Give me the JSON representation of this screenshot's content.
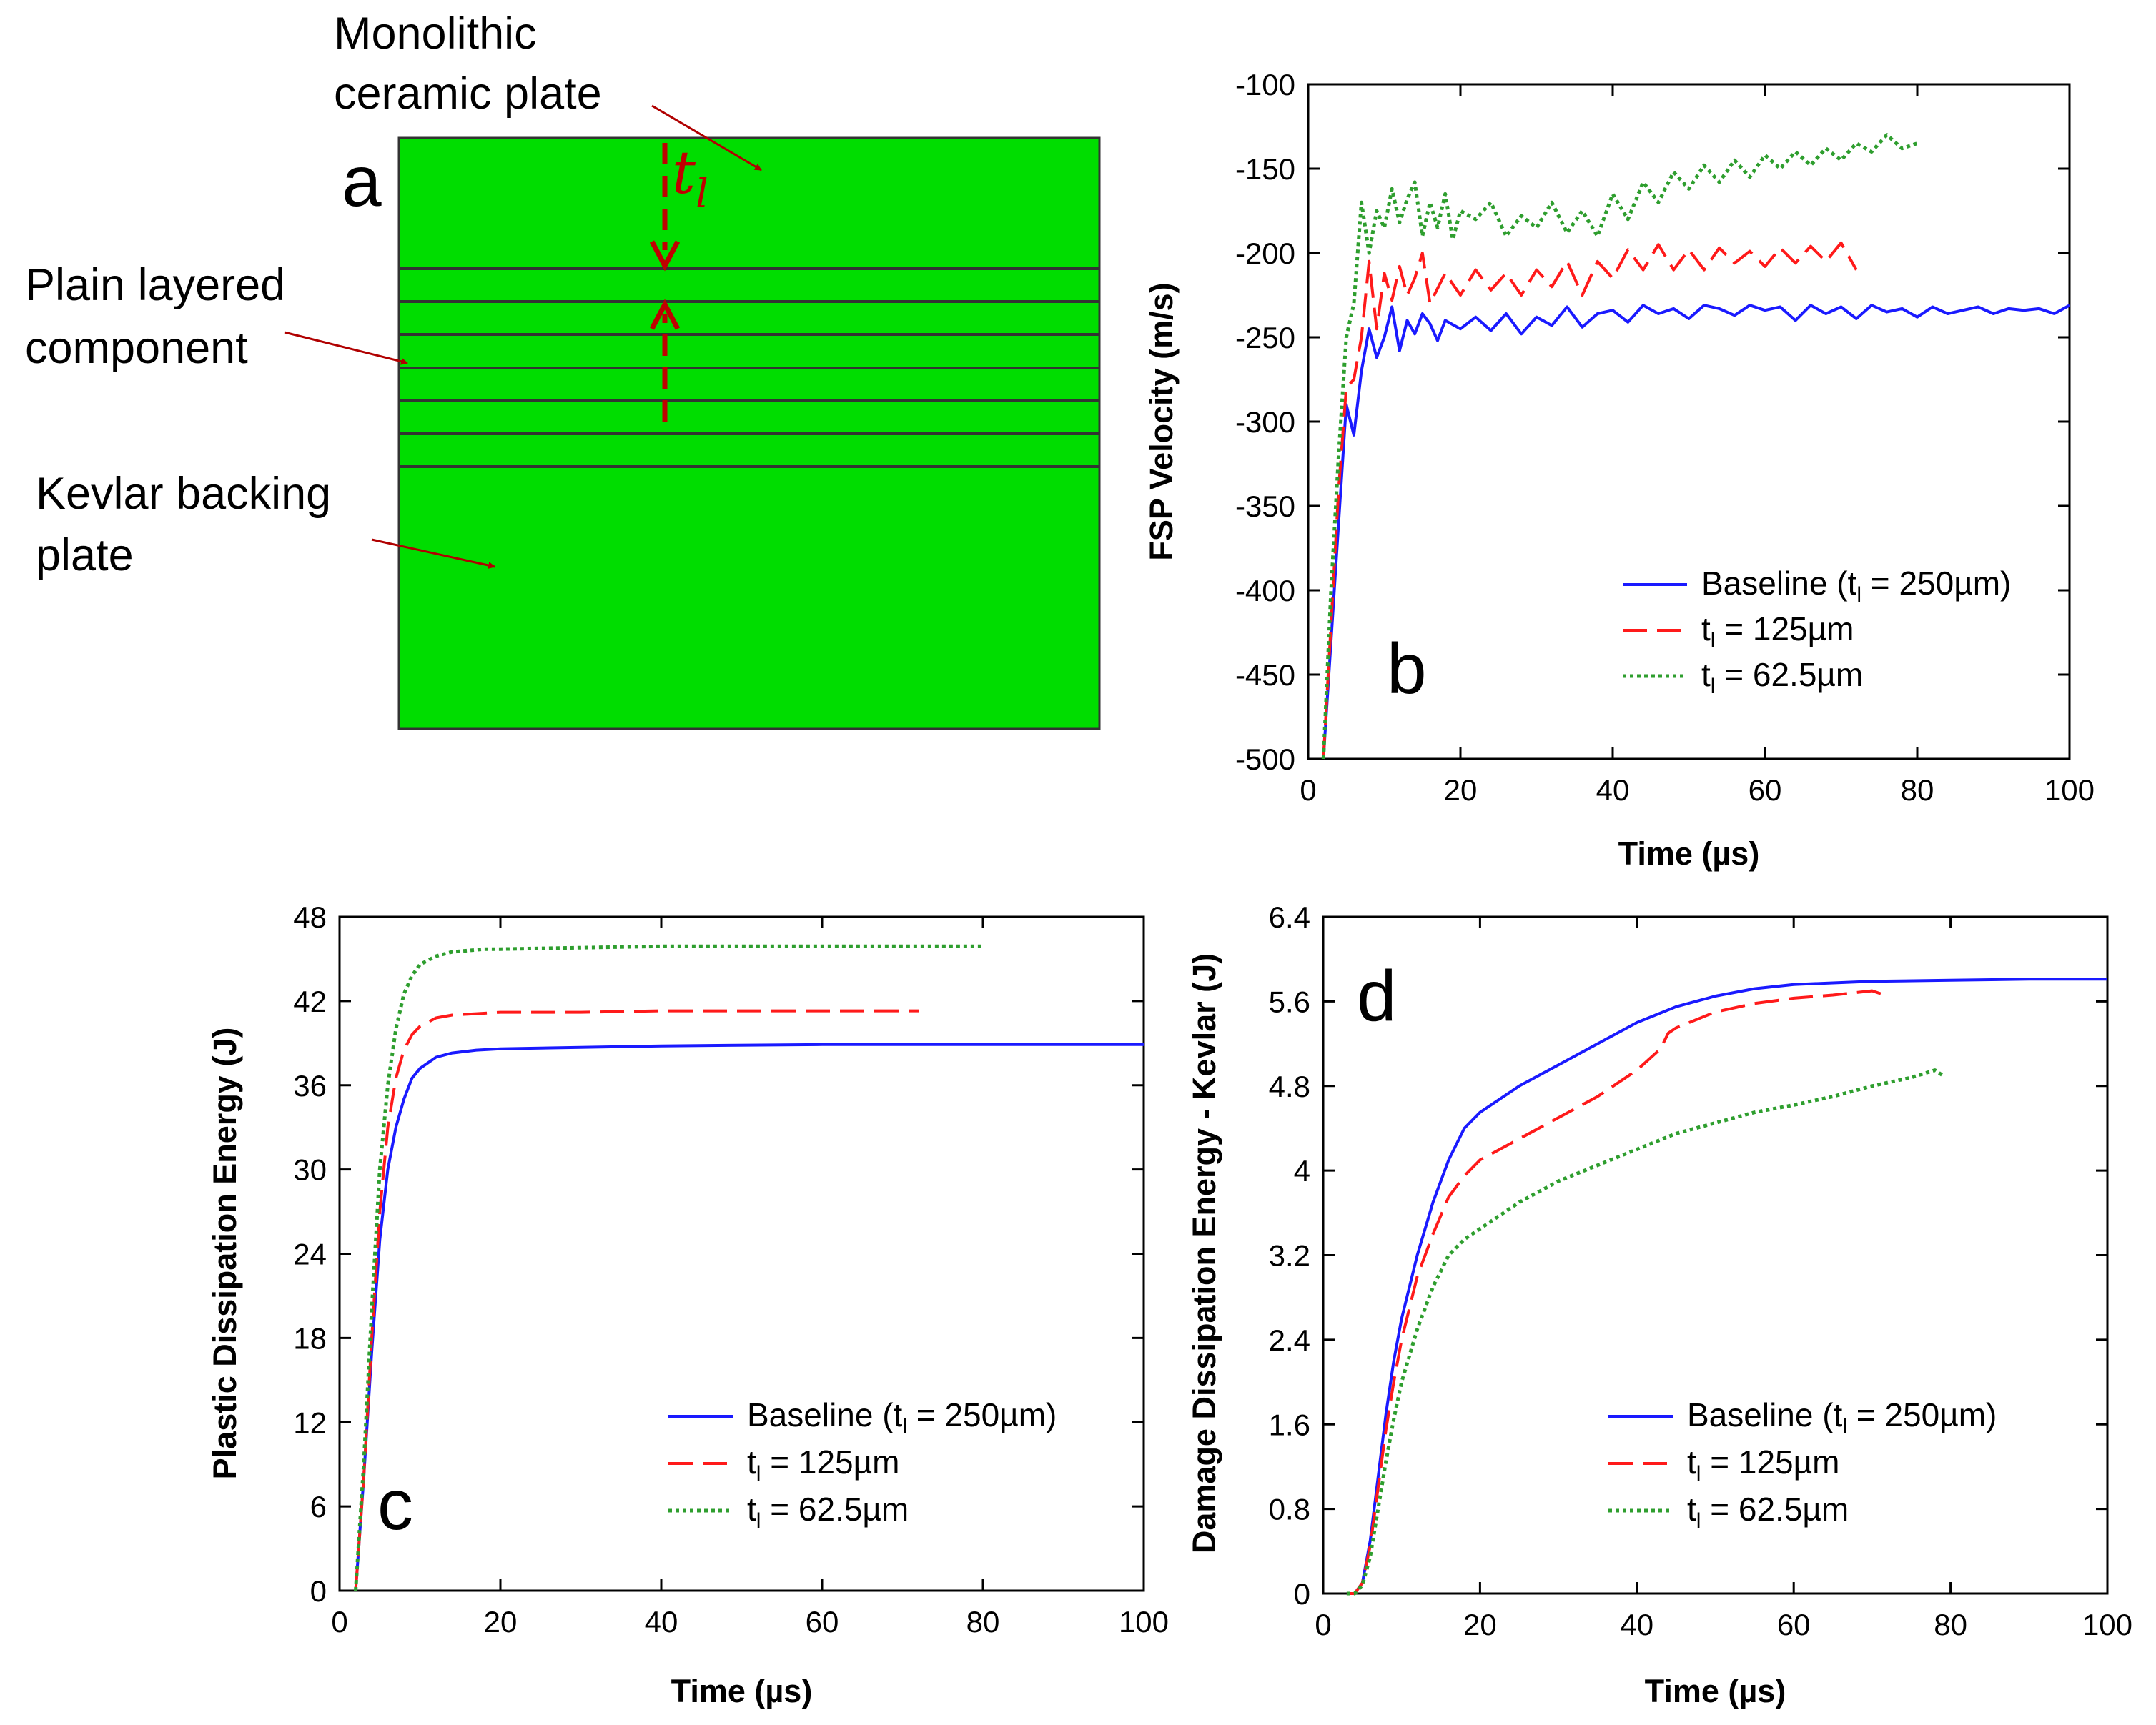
{
  "diagram": {
    "panel_letter": "a",
    "fill_color": "#00dd00",
    "line_color": "#333333",
    "arrow_color": "#c00000",
    "labels": [
      {
        "lines": [
          "Monolithic",
          "ceramic plate"
        ]
      },
      {
        "lines": [
          "Plain layered",
          "component"
        ]
      },
      {
        "lines": [
          "Kevlar backing",
          "plate"
        ]
      }
    ],
    "thickness_symbol": "t",
    "thickness_sub": "l"
  },
  "chart_data": [
    {
      "panel": "b",
      "type": "line",
      "xlabel": "Time (µs)",
      "ylabel": "FSP Velocity (m/s)",
      "xlim": [
        0,
        100
      ],
      "ylim": [
        -500,
        -100
      ],
      "xticks": [
        0,
        20,
        40,
        60,
        80,
        100
      ],
      "yticks": [
        -500,
        -450,
        -400,
        -350,
        -300,
        -250,
        -200,
        -150,
        -100
      ],
      "tick_labels_x": [
        "0",
        "20",
        "40",
        "60",
        "80",
        "100"
      ],
      "tick_labels_y": [
        "-500",
        "-450",
        "-400",
        "-350",
        "-300",
        "-250",
        "-200",
        "-150",
        "-100"
      ],
      "legend_position": "lower-right",
      "series": [
        {
          "name": "Baseline (tl = 250µm)",
          "legend": {
            "pre": "Baseline (t",
            "sub": "l",
            "post": " = 250µm)"
          },
          "color": "#1a1aff",
          "dash": "solid",
          "x": [
            2,
            3,
            4,
            5,
            6,
            7,
            8,
            9,
            10,
            11,
            12,
            13,
            14,
            15,
            16,
            17,
            18,
            20,
            22,
            24,
            26,
            28,
            30,
            32,
            34,
            36,
            38,
            40,
            42,
            44,
            46,
            48,
            50,
            52,
            54,
            56,
            58,
            60,
            62,
            64,
            66,
            68,
            70,
            72,
            74,
            76,
            78,
            80,
            82,
            84,
            86,
            88,
            90,
            92,
            94,
            96,
            98,
            100
          ],
          "y": [
            -500,
            -430,
            -360,
            -290,
            -308,
            -270,
            -245,
            -262,
            -250,
            -232,
            -258,
            -240,
            -248,
            -236,
            -242,
            -252,
            -240,
            -245,
            -238,
            -246,
            -236,
            -248,
            -238,
            -243,
            -232,
            -244,
            -236,
            -234,
            -241,
            -231,
            -236,
            -233,
            -239,
            -231,
            -233,
            -237,
            -231,
            -234,
            -232,
            -240,
            -231,
            -236,
            -232,
            -239,
            -231,
            -235,
            -233,
            -238,
            -232,
            -236,
            -234,
            -232,
            -236,
            -233,
            -234,
            -233,
            -236,
            -231
          ]
        },
        {
          "name": "tl = 125µm",
          "legend": {
            "pre": "t",
            "sub": "l",
            "post": " = 125µm"
          },
          "color": "#ff1a1a",
          "dash": "long",
          "x": [
            2,
            3,
            4,
            5,
            6,
            7,
            8,
            9,
            10,
            11,
            12,
            13,
            14,
            15,
            16,
            18,
            20,
            22,
            24,
            26,
            28,
            30,
            32,
            34,
            36,
            38,
            40,
            42,
            44,
            46,
            48,
            50,
            52,
            54,
            56,
            58,
            60,
            62,
            64,
            66,
            68,
            70,
            72
          ],
          "y": [
            -500,
            -420,
            -340,
            -280,
            -275,
            -250,
            -205,
            -245,
            -212,
            -228,
            -208,
            -225,
            -215,
            -200,
            -230,
            -212,
            -225,
            -210,
            -222,
            -212,
            -225,
            -210,
            -220,
            -205,
            -225,
            -205,
            -215,
            -198,
            -210,
            -195,
            -210,
            -198,
            -210,
            -197,
            -206,
            -199,
            -208,
            -197,
            -206,
            -196,
            -205,
            -194,
            -210
          ]
        },
        {
          "name": "tl = 62.5µm",
          "legend": {
            "pre": "t",
            "sub": "l",
            "post": " = 62.5µm"
          },
          "color": "#2e9e2e",
          "dash": "dotted",
          "x": [
            2,
            3,
            4,
            5,
            6,
            7,
            8,
            9,
            10,
            11,
            12,
            13,
            14,
            15,
            16,
            17,
            18,
            19,
            20,
            22,
            24,
            26,
            28,
            30,
            32,
            34,
            36,
            38,
            40,
            42,
            44,
            46,
            48,
            50,
            52,
            54,
            56,
            58,
            60,
            62,
            64,
            66,
            68,
            70,
            72,
            74,
            76,
            78,
            80
          ],
          "y": [
            -500,
            -400,
            -320,
            -250,
            -230,
            -170,
            -200,
            -175,
            -185,
            -162,
            -182,
            -168,
            -158,
            -190,
            -170,
            -185,
            -165,
            -192,
            -175,
            -180,
            -170,
            -190,
            -178,
            -185,
            -170,
            -188,
            -175,
            -190,
            -165,
            -180,
            -158,
            -170,
            -152,
            -162,
            -148,
            -158,
            -145,
            -155,
            -142,
            -150,
            -140,
            -148,
            -138,
            -145,
            -135,
            -140,
            -130,
            -138,
            -135
          ]
        }
      ]
    },
    {
      "panel": "c",
      "type": "line",
      "xlabel": "Time (µs)",
      "ylabel": "Plastic Dissipation Energy (J)",
      "xlim": [
        0,
        100
      ],
      "ylim": [
        0,
        48
      ],
      "xticks": [
        0,
        20,
        40,
        60,
        80,
        100
      ],
      "yticks": [
        0,
        6,
        12,
        18,
        24,
        30,
        36,
        42,
        48
      ],
      "tick_labels_x": [
        "0",
        "20",
        "40",
        "60",
        "80",
        "100"
      ],
      "tick_labels_y": [
        "0",
        "6",
        "12",
        "18",
        "24",
        "30",
        "36",
        "42",
        "48"
      ],
      "legend_position": "lower-right",
      "series": [
        {
          "name": "Baseline (tl = 250µm)",
          "legend": {
            "pre": "Baseline (t",
            "sub": "l",
            "post": " = 250µm)"
          },
          "color": "#1a1aff",
          "dash": "solid",
          "x": [
            2,
            3,
            4,
            5,
            6,
            7,
            8,
            9,
            10,
            12,
            14,
            17,
            20,
            30,
            40,
            60,
            80,
            100
          ],
          "y": [
            0,
            8,
            17,
            25,
            30,
            33,
            35,
            36.5,
            37.2,
            38,
            38.3,
            38.5,
            38.6,
            38.7,
            38.8,
            38.9,
            38.9,
            38.9
          ]
        },
        {
          "name": "tl = 125µm",
          "legend": {
            "pre": "t",
            "sub": "l",
            "post": " = 125µm"
          },
          "color": "#ff1a1a",
          "dash": "long",
          "x": [
            2,
            3,
            4,
            5,
            6,
            7,
            8,
            9,
            10,
            12,
            14,
            17,
            20,
            30,
            40,
            60,
            72
          ],
          "y": [
            0,
            8,
            18,
            27,
            33,
            36.5,
            38.5,
            39.6,
            40.2,
            40.8,
            41,
            41.1,
            41.2,
            41.2,
            41.3,
            41.3,
            41.3
          ]
        },
        {
          "name": "tl = 62.5µm",
          "legend": {
            "pre": "t",
            "sub": "l",
            "post": " = 62.5µm"
          },
          "color": "#2e9e2e",
          "dash": "dotted",
          "x": [
            2,
            3,
            4,
            5,
            6,
            7,
            8,
            9,
            10,
            12,
            14,
            16,
            18,
            20,
            30,
            40,
            60,
            80
          ],
          "y": [
            0,
            9,
            20,
            30,
            36,
            40,
            42.5,
            43.8,
            44.6,
            45.2,
            45.5,
            45.6,
            45.7,
            45.7,
            45.8,
            45.9,
            45.9,
            45.9
          ]
        }
      ]
    },
    {
      "panel": "d",
      "type": "line",
      "xlabel": "Time (µs)",
      "ylabel": "Damage Dissipation Energy - Kevlar (J)",
      "xlim": [
        0,
        100
      ],
      "ylim": [
        0,
        6.4
      ],
      "xticks": [
        0,
        20,
        40,
        60,
        80,
        100
      ],
      "yticks": [
        0,
        0.8,
        1.6,
        2.4,
        3.2,
        4,
        4.8,
        5.6,
        6.4
      ],
      "tick_labels_x": [
        "0",
        "20",
        "40",
        "60",
        "80",
        "100"
      ],
      "tick_labels_y": [
        "0",
        "0.8",
        "1.6",
        "2.4",
        "3.2",
        "4",
        "4.8",
        "5.6",
        "6.4"
      ],
      "legend_position": "lower-right",
      "series": [
        {
          "name": "Baseline (tl = 250µm)",
          "legend": {
            "pre": "Baseline (t",
            "sub": "l",
            "post": " = 250µm)"
          },
          "color": "#1a1aff",
          "dash": "solid",
          "x": [
            3,
            4,
            5,
            6,
            7,
            8,
            9,
            10,
            12,
            14,
            16,
            18,
            20,
            25,
            30,
            35,
            40,
            45,
            50,
            55,
            60,
            70,
            80,
            90,
            100
          ],
          "y": [
            0,
            0,
            0.1,
            0.5,
            1.1,
            1.7,
            2.2,
            2.6,
            3.2,
            3.7,
            4.1,
            4.4,
            4.55,
            4.8,
            5.0,
            5.2,
            5.4,
            5.55,
            5.65,
            5.72,
            5.76,
            5.79,
            5.8,
            5.81,
            5.81
          ]
        },
        {
          "name": "tl = 125µm",
          "legend": {
            "pre": "t",
            "sub": "l",
            "post": " = 125µm"
          },
          "color": "#ff1a1a",
          "dash": "long",
          "x": [
            3,
            4,
            5,
            6,
            7,
            8,
            9,
            10,
            12,
            14,
            16,
            18,
            20,
            25,
            30,
            35,
            40,
            43,
            44,
            45,
            50,
            55,
            60,
            65,
            70,
            72
          ],
          "y": [
            0,
            0,
            0.1,
            0.45,
            1.0,
            1.55,
            2.0,
            2.4,
            3.0,
            3.4,
            3.75,
            3.95,
            4.1,
            4.3,
            4.5,
            4.7,
            4.95,
            5.15,
            5.3,
            5.35,
            5.5,
            5.58,
            5.63,
            5.66,
            5.7,
            5.65
          ]
        },
        {
          "name": "tl = 62.5µm",
          "legend": {
            "pre": "t",
            "sub": "l",
            "post": " = 62.5µm"
          },
          "color": "#2e9e2e",
          "dash": "dotted",
          "x": [
            3,
            4,
            5,
            6,
            7,
            8,
            9,
            10,
            12,
            14,
            16,
            18,
            20,
            25,
            30,
            35,
            40,
            45,
            50,
            55,
            60,
            65,
            70,
            75,
            78,
            79
          ],
          "y": [
            0,
            0,
            0.08,
            0.35,
            0.8,
            1.25,
            1.65,
            2.0,
            2.5,
            2.9,
            3.2,
            3.35,
            3.45,
            3.7,
            3.9,
            4.05,
            4.2,
            4.35,
            4.45,
            4.55,
            4.62,
            4.7,
            4.8,
            4.88,
            4.95,
            4.9
          ]
        }
      ]
    }
  ]
}
